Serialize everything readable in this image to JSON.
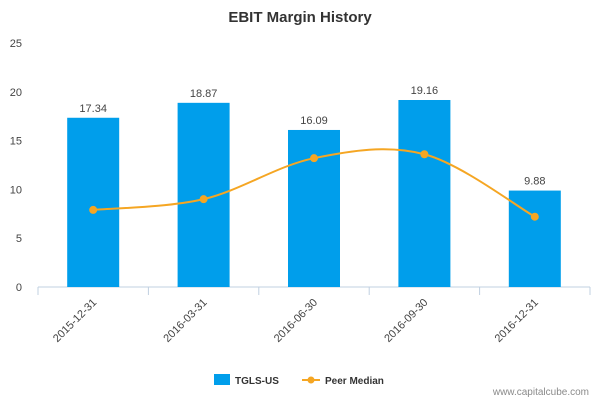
{
  "chart_data": {
    "type": "bar",
    "title": "EBIT Margin History",
    "categories": [
      "2015-12-31",
      "2016-03-31",
      "2016-06-30",
      "2016-09-30",
      "2016-12-31"
    ],
    "series": [
      {
        "name": "TGLS-US",
        "type": "bar",
        "values": [
          17.34,
          18.87,
          16.09,
          19.16,
          9.88
        ],
        "data_labels": [
          "17.34",
          "18.87",
          "16.09",
          "19.16",
          "9.88"
        ]
      },
      {
        "name": "Peer Median",
        "type": "line",
        "values": [
          7.9,
          9.0,
          13.2,
          13.6,
          7.2
        ]
      }
    ],
    "ylim": [
      0,
      25
    ],
    "yticks": [
      0,
      5,
      10,
      15,
      20,
      25
    ],
    "ytick_labels": [
      "0",
      "5",
      "10",
      "15",
      "20",
      "25"
    ],
    "xlabel": "",
    "ylabel": "",
    "grid": false,
    "legend_position": "bottom-center"
  },
  "colors": {
    "bar": "#009EEB",
    "line": "#F5A623",
    "axis": "#C0D0E0",
    "text": "#444444",
    "title": "#333333",
    "watermark": "#8A8A8A"
  },
  "watermark": "www.capitalcube.com"
}
